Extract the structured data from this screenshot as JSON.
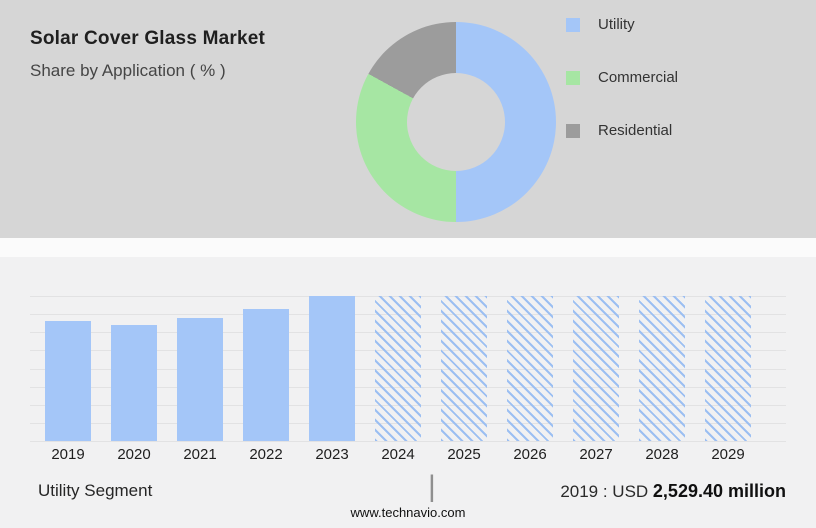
{
  "header": {
    "title": "Solar Cover Glass Market",
    "subtitle": "Share by Application ( % )"
  },
  "legend": [
    {
      "label": "Utility",
      "color": "#a4c6f8"
    },
    {
      "label": "Commercial",
      "color": "#a6e6a3"
    },
    {
      "label": "Residential",
      "color": "#9c9c9c"
    }
  ],
  "chart_data": [
    {
      "type": "pie",
      "title": "Share by Application ( % )",
      "labels": [
        "Utility",
        "Commercial",
        "Residential"
      ],
      "values": [
        50,
        33,
        17
      ],
      "colors": [
        "#a4c6f8",
        "#a6e6a3",
        "#9c9c9c"
      ],
      "legend_position": "right",
      "style": "donut"
    },
    {
      "type": "bar",
      "categories": [
        "2019",
        "2020",
        "2021",
        "2022",
        "2023",
        "2024",
        "2025",
        "2026",
        "2027",
        "2028",
        "2029"
      ],
      "series": [
        {
          "name": "historic (solid)",
          "values": [
            83,
            80,
            85,
            91,
            100,
            null,
            null,
            null,
            null,
            null,
            null
          ]
        },
        {
          "name": "forecast (hatched)",
          "values": [
            null,
            null,
            null,
            null,
            null,
            100,
            100,
            100,
            100,
            100,
            100
          ]
        }
      ],
      "ylabel": "relative height (% of max, axis unlabeled)",
      "ylim": [
        0,
        100
      ],
      "grid": true,
      "annotations": [
        "2019 : USD 2,529.40 million"
      ]
    }
  ],
  "footer": {
    "segment_label": "Utility Segment",
    "separator": "|",
    "value_prefix": "2019 : USD ",
    "value_bold": "2,529.40 million",
    "website": "www.technavio.com"
  }
}
